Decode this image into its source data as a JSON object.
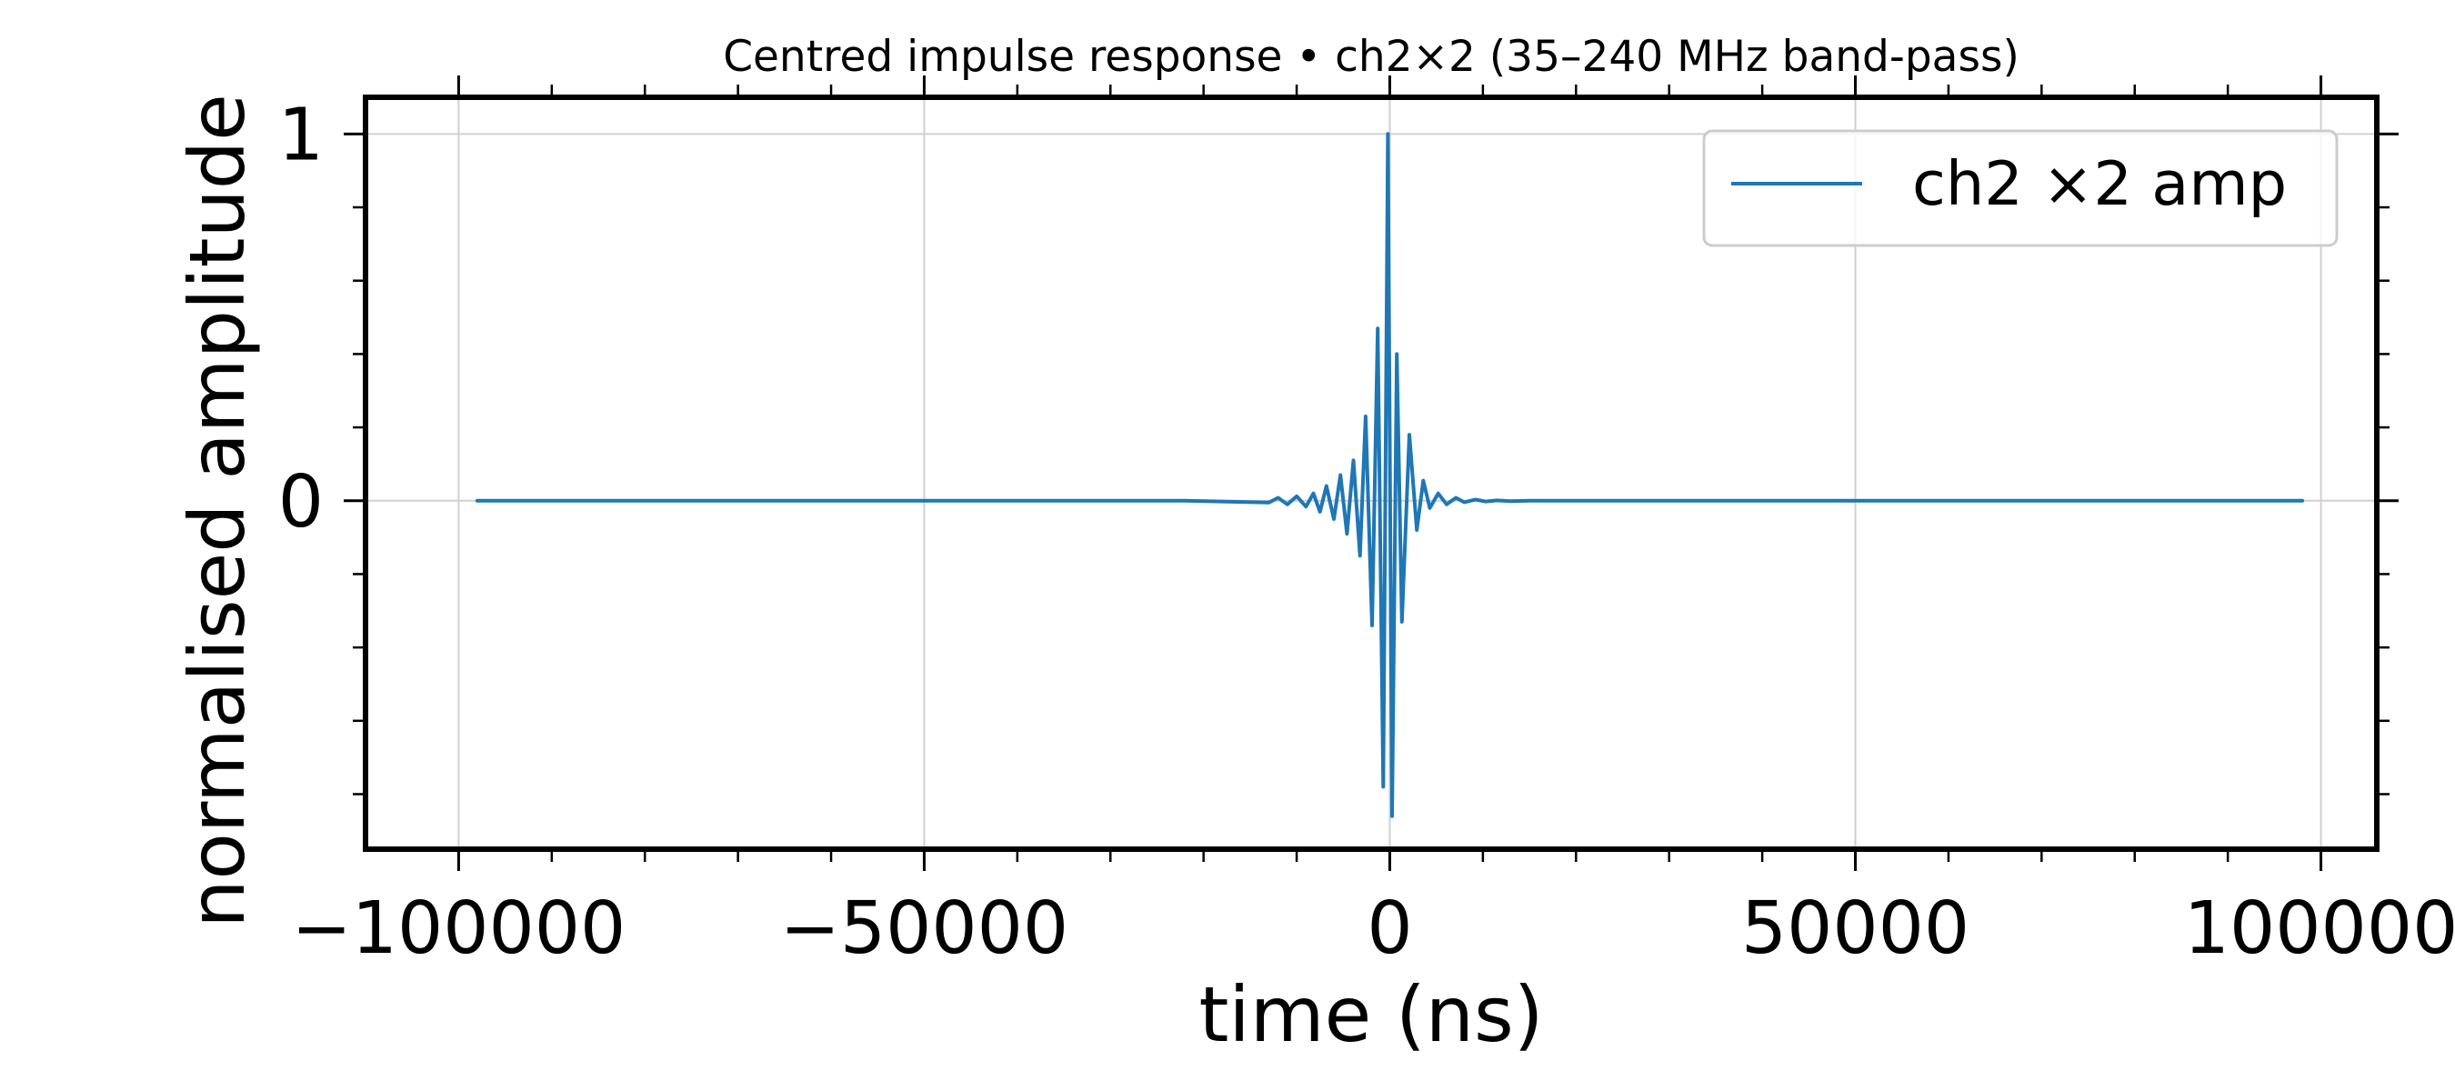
{
  "chart_data": {
    "type": "line",
    "title": "Centred impulse response • ch2×2 (35–240 MHz band-pass)",
    "xlabel": "time (ns)",
    "ylabel": "normalised amplitude",
    "xlim": [
      -110000,
      106000
    ],
    "ylim": [
      -0.95,
      1.1
    ],
    "x_ticks": [
      -100000,
      -50000,
      0,
      50000,
      100000
    ],
    "x_tick_labels": [
      "−100000",
      "−50000",
      "0",
      "50000",
      "100000"
    ],
    "x_minor_ticks": [
      -90000,
      -80000,
      -70000,
      -60000,
      -40000,
      -30000,
      -20000,
      -10000,
      10000,
      20000,
      30000,
      40000,
      60000,
      70000,
      80000,
      90000
    ],
    "y_ticks": [
      0,
      1
    ],
    "y_tick_labels": [
      "0",
      "1"
    ],
    "y_minor_ticks": [
      -0.8,
      -0.6,
      -0.4,
      -0.2,
      0.2,
      0.4,
      0.6,
      0.8
    ],
    "grid": true,
    "legend_position": "top-right",
    "series": [
      {
        "name": "ch2 ×2 amp",
        "color": "#1f77b4",
        "x": [
          -98000,
          -22000,
          -13000,
          -12000,
          -11000,
          -10000,
          -9000,
          -8200,
          -7500,
          -6800,
          -6000,
          -5300,
          -4600,
          -3900,
          -3200,
          -2600,
          -1900,
          -1300,
          -700,
          -200,
          250,
          750,
          1300,
          2100,
          2900,
          3600,
          4300,
          5200,
          6100,
          7100,
          8000,
          9200,
          10300,
          11500,
          13000,
          15000,
          18000,
          98000
        ],
        "y": [
          0,
          0,
          -0.005,
          0.008,
          -0.01,
          0.012,
          -0.016,
          0.02,
          -0.03,
          0.04,
          -0.05,
          0.07,
          -0.09,
          0.11,
          -0.15,
          0.23,
          -0.34,
          0.47,
          -0.78,
          1.0,
          -0.86,
          0.4,
          -0.33,
          0.18,
          -0.08,
          0.055,
          -0.02,
          0.02,
          -0.01,
          0.008,
          -0.004,
          0.003,
          -0.002,
          0.001,
          -0.001,
          0.0,
          0.0,
          0.0
        ]
      }
    ]
  }
}
